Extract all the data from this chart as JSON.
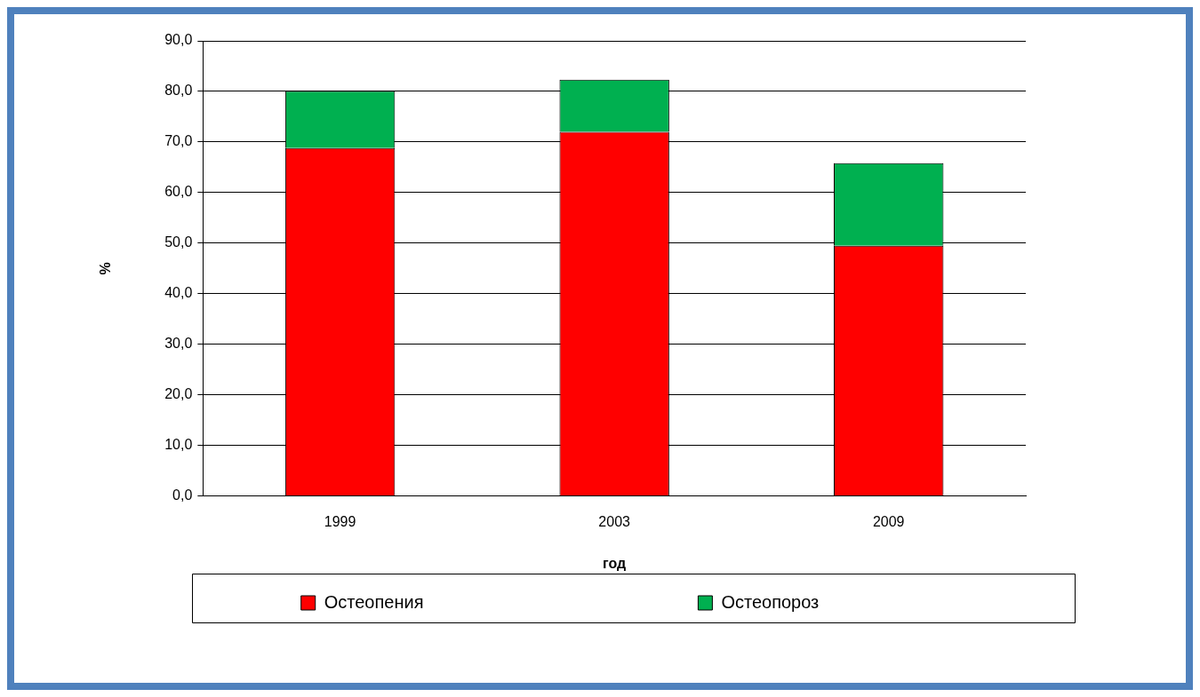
{
  "chart_data": {
    "type": "bar",
    "stacked": true,
    "xlabel": "год",
    "ylabel": "%",
    "categories": [
      "1999",
      "2003",
      "2009"
    ],
    "series": [
      {
        "name": "Остеопения",
        "color": "#ff0000",
        "values": [
          68.8,
          72.0,
          49.5
        ]
      },
      {
        "name": "Остеопороз",
        "color": "#00b050",
        "values": [
          11.3,
          10.3,
          16.3
        ]
      }
    ],
    "ylim": [
      0,
      90
    ],
    "yticks": [
      {
        "value": 0,
        "label": "0,0"
      },
      {
        "value": 10,
        "label": "10,0"
      },
      {
        "value": 20,
        "label": "20,0"
      },
      {
        "value": 30,
        "label": "30,0"
      },
      {
        "value": 40,
        "label": "40,0"
      },
      {
        "value": 50,
        "label": "50,0"
      },
      {
        "value": 60,
        "label": "60,0"
      },
      {
        "value": 70,
        "label": "70,0"
      },
      {
        "value": 80,
        "label": "80,0"
      },
      {
        "value": 90,
        "label": "90,0"
      }
    ],
    "grid": "y",
    "legend": "bottom"
  }
}
